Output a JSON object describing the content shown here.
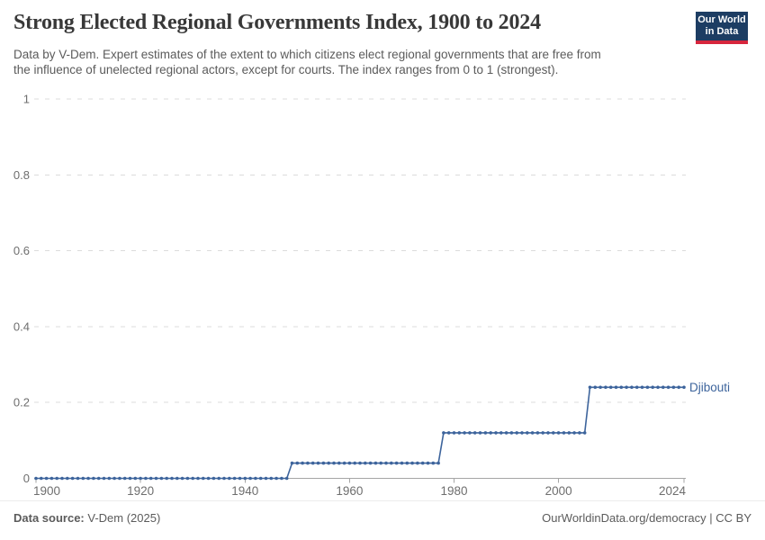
{
  "header": {
    "title": "Strong Elected Regional Governments Index, 1900 to 2024",
    "subtitle_lines": [
      "Data by V-Dem. Expert estimates of the extent to which citizens elect regional governments that are free from",
      "the influence of unelected regional actors, except for courts. The index ranges from 0 to 1 (strongest)."
    ],
    "logo": {
      "line1": "Our World",
      "line2": "in Data"
    }
  },
  "chart_data": {
    "type": "line",
    "title": "Strong Elected Regional Governments Index, 1900 to 2024",
    "xlabel": "",
    "ylabel": "",
    "xlim": [
      1900,
      2024
    ],
    "ylim": [
      0,
      1
    ],
    "grid": "horizontal-dashed",
    "marker": "dot-per-year",
    "legend_position": "end-of-line-label",
    "x_ticks": [
      1900,
      1920,
      1940,
      1960,
      1980,
      2000,
      2024
    ],
    "y_ticks": [
      0,
      0.2,
      0.4,
      0.6,
      0.8,
      1
    ],
    "y_tick_labels": [
      "0",
      "0.2",
      "0.4",
      "0.6",
      "0.8",
      "1"
    ],
    "series": [
      {
        "name": "Djibouti",
        "color": "#3d649c",
        "segments": [
          {
            "start_year": 1900,
            "end_year": 1948,
            "value": 0
          },
          {
            "start_year": 1949,
            "end_year": 1977,
            "value": 0.04
          },
          {
            "start_year": 1978,
            "end_year": 2005,
            "value": 0.12
          },
          {
            "start_year": 2006,
            "end_year": 2024,
            "value": 0.24
          }
        ]
      }
    ]
  },
  "footer": {
    "source_label": "Data source:",
    "source_value": " V-Dem (2025)",
    "credit": "OurWorldinData.org/democracy | CC BY"
  },
  "colors": {
    "line": "#3d649c",
    "grid": "#dcdcdc",
    "axis": "#a5a5a5",
    "tick_text": "#6e6e6e",
    "title": "#383838",
    "subtitle": "#5b5b5b",
    "logo_bg": "#1d3d63",
    "logo_stripe": "#d7263d"
  }
}
